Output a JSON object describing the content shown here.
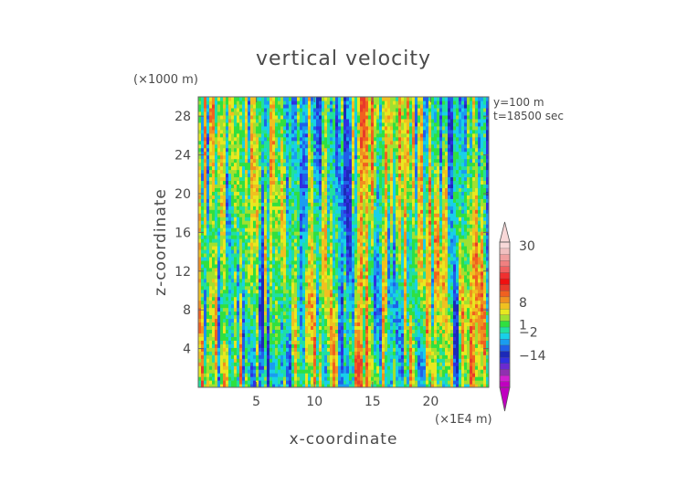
{
  "chart_data": {
    "type": "heatmap",
    "title": "vertical velocity",
    "xlabel": "x-coordinate",
    "ylabel": "z-coordinate",
    "x_unit": "(×1E4 m)",
    "y_unit": "(×1000 m)",
    "annotations": [
      "y=100 m",
      "t=18500 sec"
    ],
    "xlim": [
      0,
      25
    ],
    "ylim": [
      0,
      30
    ],
    "x_ticks": [
      5,
      10,
      15,
      20
    ],
    "x_tick_labels": [
      "5",
      "10",
      "15",
      "20"
    ],
    "y_ticks": [
      4,
      8,
      12,
      16,
      20,
      24,
      28
    ],
    "y_tick_labels": [
      "4",
      "8",
      "12",
      "16",
      "20",
      "24",
      "28"
    ],
    "colorbar": {
      "labels": [
        {
          "value": 30,
          "text": "30"
        },
        {
          "value": 8,
          "text": "8"
        },
        {
          "value": 1,
          "text": "1"
        },
        {
          "value": -2,
          "text": "−2"
        },
        {
          "value": -14,
          "text": "−14"
        }
      ],
      "extend": "both",
      "colors": [
        "#c000c0",
        "#d020d0",
        "#9030b0",
        "#6a2ad0",
        "#3030e0",
        "#1c2ab8",
        "#2060e8",
        "#1a9cf0",
        "#18d0e8",
        "#20e0a0",
        "#30e040",
        "#a0e030",
        "#e8e820",
        "#f0c020",
        "#f09020",
        "#f06020",
        "#e83a2a",
        "#f01010",
        "#f03030",
        "#f06060",
        "#f08080",
        "#f0a0a0",
        "#f0c0c0",
        "#f8d8d8"
      ]
    }
  }
}
